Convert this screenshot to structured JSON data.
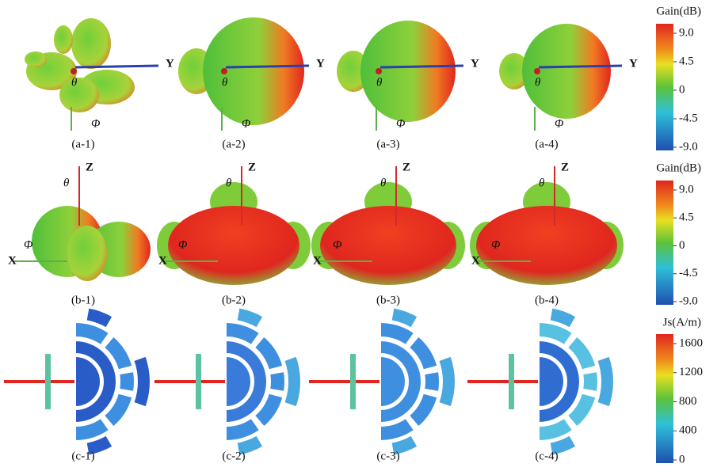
{
  "panels": [
    [
      "(a-1)",
      "(a-2)",
      "(a-3)",
      "(a-4)"
    ],
    [
      "(b-1)",
      "(b-2)",
      "(b-3)",
      "(b-4)"
    ],
    [
      "(c-1)",
      "(c-2)",
      "(c-3)",
      "(c-4)"
    ]
  ],
  "axis_labels": {
    "theta": "θ",
    "phi": "Φ",
    "y": "Y",
    "z": "Z",
    "x": "X"
  },
  "colorbars": [
    {
      "title": "Gain(dB)",
      "ticks": [
        "9.0",
        "4.5",
        "0",
        "-4.5",
        "-9.0"
      ]
    },
    {
      "title": "Gain(dB)",
      "ticks": [
        "9.0",
        "4.5",
        "0",
        "-4.5",
        "-9.0"
      ]
    },
    {
      "title": "Js(A/m)",
      "ticks": [
        "1600",
        "1200",
        "800",
        "400",
        "0"
      ]
    }
  ]
}
